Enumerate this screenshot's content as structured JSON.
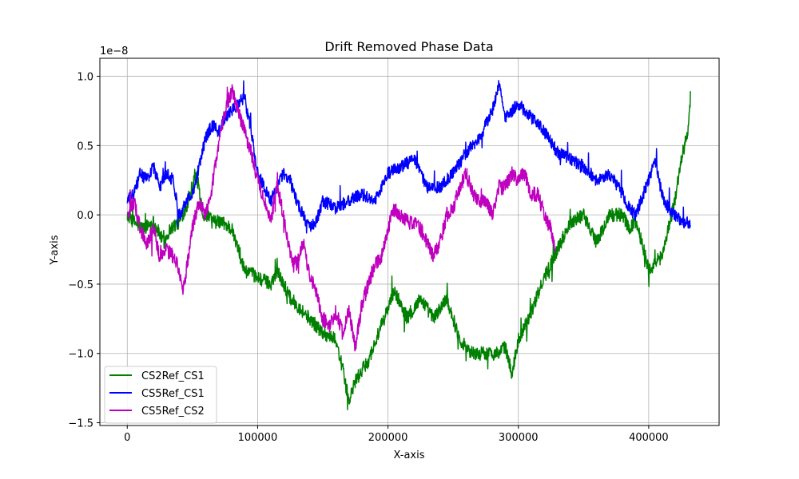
{
  "chart_data": {
    "type": "line",
    "title": "Drift Removed Phase Data",
    "xlabel": "X-axis",
    "ylabel": "Y-axis",
    "y_offset_label": "1e−8",
    "xlim": [
      -21000,
      454000
    ],
    "ylim": [
      -1.52,
      1.13
    ],
    "y_scale": 1e-08,
    "xticks": [
      0,
      100000,
      200000,
      300000,
      400000
    ],
    "xtick_labels": [
      "0",
      "100000",
      "200000",
      "300000",
      "400000"
    ],
    "yticks": [
      -1.5,
      -1.0,
      -0.5,
      0.0,
      0.5,
      1.0
    ],
    "ytick_labels": [
      "−1.5",
      "−1.0",
      "−0.5",
      "0.0",
      "0.5",
      "1.0"
    ],
    "grid": true,
    "legend_position": "lower-left",
    "series": [
      {
        "name": "CS2Ref_CS1",
        "color": "#008000",
        "noise": 0.05,
        "x": [
          0,
          5000,
          12000,
          20000,
          28000,
          33000,
          40000,
          47000,
          52000,
          55000,
          58000,
          62000,
          65000,
          72000,
          80000,
          85000,
          90000,
          100000,
          110000,
          115000,
          125000,
          135000,
          145000,
          150000,
          160000,
          165000,
          170000,
          175000,
          185000,
          195000,
          205000,
          215000,
          225000,
          235000,
          245000,
          255000,
          265000,
          275000,
          285000,
          290000,
          295000,
          300000,
          310000,
          320000,
          330000,
          340000,
          350000,
          360000,
          370000,
          380000,
          385000,
          390000,
          395000,
          400000,
          405000,
          410000,
          415000,
          420000,
          425000,
          430000,
          432000
        ],
        "y": [
          0.0,
          -0.05,
          -0.1,
          -0.05,
          -0.2,
          -0.1,
          -0.05,
          0.1,
          0.3,
          0.2,
          0.0,
          0.0,
          -0.05,
          -0.05,
          -0.1,
          -0.25,
          -0.4,
          -0.45,
          -0.5,
          -0.4,
          -0.6,
          -0.7,
          -0.8,
          -0.85,
          -0.9,
          -1.1,
          -1.35,
          -1.2,
          -1.05,
          -0.8,
          -0.55,
          -0.75,
          -0.6,
          -0.75,
          -0.6,
          -0.9,
          -1.0,
          -1.0,
          -1.0,
          -0.95,
          -1.15,
          -0.9,
          -0.7,
          -0.45,
          -0.25,
          -0.05,
          0.0,
          -0.2,
          0.0,
          0.0,
          -0.1,
          -0.05,
          -0.2,
          -0.4,
          -0.35,
          -0.3,
          -0.1,
          0.1,
          0.4,
          0.6,
          0.8
        ]
      },
      {
        "name": "CS5Ref_CS1",
        "color": "#0000ff",
        "noise": 0.045,
        "x": [
          0,
          5000,
          10000,
          15000,
          20000,
          25000,
          30000,
          35000,
          40000,
          45000,
          50000,
          55000,
          60000,
          65000,
          70000,
          75000,
          80000,
          85000,
          90000,
          95000,
          100000,
          105000,
          110000,
          115000,
          120000,
          125000,
          130000,
          135000,
          140000,
          145000,
          150000,
          160000,
          170000,
          180000,
          190000,
          200000,
          210000,
          220000,
          230000,
          240000,
          250000,
          260000,
          270000,
          280000,
          285000,
          290000,
          300000,
          310000,
          320000,
          330000,
          340000,
          350000,
          360000,
          370000,
          380000,
          385000,
          390000,
          400000,
          405000,
          410000,
          415000,
          420000,
          425000,
          430000,
          432000
        ],
        "y": [
          0.1,
          0.15,
          0.3,
          0.25,
          0.35,
          0.2,
          0.3,
          0.25,
          0.0,
          0.1,
          0.15,
          0.35,
          0.55,
          0.65,
          0.6,
          0.7,
          0.75,
          0.8,
          0.85,
          0.6,
          0.3,
          0.2,
          0.1,
          0.2,
          0.3,
          0.25,
          0.1,
          0.0,
          -0.1,
          -0.05,
          0.1,
          0.05,
          0.1,
          0.15,
          0.1,
          0.3,
          0.35,
          0.4,
          0.2,
          0.2,
          0.3,
          0.45,
          0.55,
          0.75,
          0.95,
          0.7,
          0.8,
          0.7,
          0.6,
          0.45,
          0.4,
          0.35,
          0.25,
          0.3,
          0.15,
          0.05,
          0.0,
          0.25,
          0.4,
          0.15,
          0.05,
          0.0,
          -0.05,
          -0.05,
          -0.08
        ]
      },
      {
        "name": "CS5Ref_CS2",
        "color": "#bf00bf",
        "noise": 0.055,
        "x": [
          0,
          5000,
          10000,
          15000,
          20000,
          25000,
          30000,
          35000,
          40000,
          43000,
          46000,
          50000,
          55000,
          60000,
          65000,
          70000,
          75000,
          80000,
          85000,
          90000,
          95000,
          100000,
          105000,
          110000,
          115000,
          120000,
          125000,
          130000,
          135000,
          140000,
          145000,
          150000,
          155000,
          160000,
          165000,
          170000,
          175000,
          180000,
          185000,
          190000,
          195000,
          200000,
          205000,
          210000,
          215000,
          220000,
          225000,
          230000,
          235000,
          240000,
          245000,
          250000,
          255000,
          260000,
          265000,
          270000,
          275000,
          280000,
          285000,
          290000,
          295000,
          300000,
          305000,
          310000,
          315000,
          320000,
          325000,
          328000
        ],
        "y": [
          0.0,
          0.1,
          -0.1,
          -0.2,
          -0.1,
          -0.3,
          -0.25,
          -0.3,
          -0.4,
          -0.55,
          -0.35,
          -0.1,
          0.1,
          0.0,
          0.2,
          0.5,
          0.75,
          0.9,
          0.75,
          0.6,
          0.45,
          0.25,
          0.1,
          -0.05,
          0.2,
          0.0,
          -0.3,
          -0.35,
          -0.2,
          -0.45,
          -0.55,
          -0.75,
          -0.8,
          -0.7,
          -0.85,
          -0.7,
          -0.95,
          -0.65,
          -0.5,
          -0.35,
          -0.3,
          -0.1,
          0.05,
          0.0,
          -0.05,
          -0.05,
          -0.1,
          -0.2,
          -0.3,
          -0.2,
          0.0,
          0.05,
          0.2,
          0.3,
          0.15,
          0.1,
          0.1,
          0.0,
          0.2,
          0.2,
          0.3,
          0.25,
          0.3,
          0.15,
          0.15,
          0.0,
          -0.1,
          -0.25
        ]
      }
    ]
  }
}
